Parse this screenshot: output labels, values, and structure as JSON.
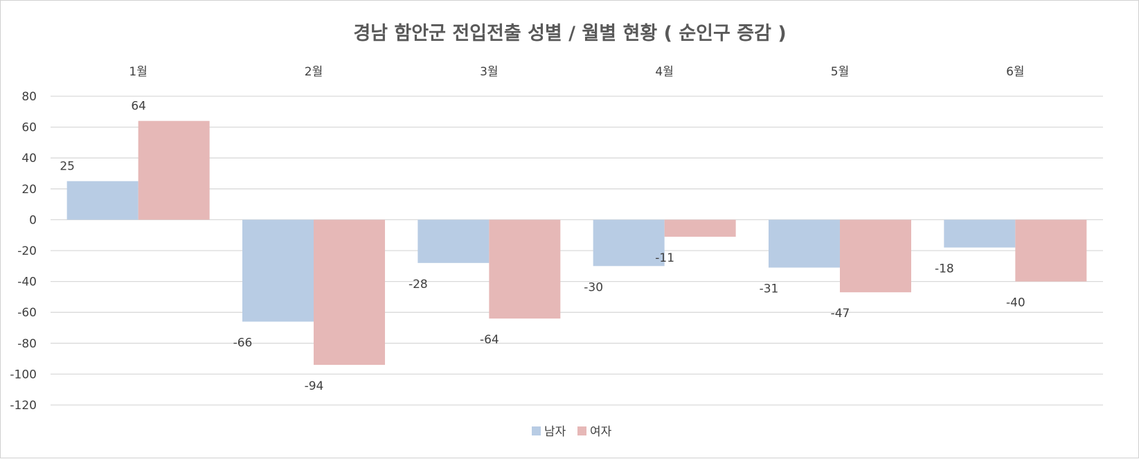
{
  "chart_data": {
    "type": "bar",
    "title": "경남 함안군 전입전출 성별 / 월별 현황 ( 순인구 증감 )",
    "categories": [
      "1월",
      "2월",
      "3월",
      "4월",
      "5월",
      "6월"
    ],
    "series": [
      {
        "name": "남자",
        "values": [
          25,
          -66,
          -28,
          -30,
          -31,
          -18
        ],
        "color": "#b8cce4"
      },
      {
        "name": "여자",
        "values": [
          64,
          -94,
          -64,
          -11,
          -47,
          -40
        ],
        "color": "#e6b8b7"
      }
    ],
    "ylim": [
      -120,
      80
    ],
    "yticks": [
      "80",
      "60",
      "40",
      "20",
      "0",
      "-20",
      "-40",
      "-60",
      "-80",
      "-100",
      "-120"
    ],
    "grid": true,
    "legend": "bottom",
    "category_labels_position": "top"
  }
}
